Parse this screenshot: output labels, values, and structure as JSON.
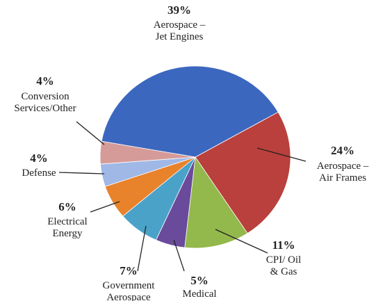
{
  "chart_data": {
    "type": "pie",
    "categories": [
      "Aerospace –\nJet Engines",
      "Aerospace –\nAir Frames",
      "CPI/ Oil\n& Gas",
      "Medical",
      "Government\nAerospace",
      "Electrical\nEnergy",
      "Defense",
      "Conversion\nServices/Other"
    ],
    "values": [
      39,
      24,
      11,
      5,
      7,
      6,
      4,
      4
    ],
    "value_labels": [
      "39%",
      "24%",
      "11%",
      "5%",
      "7%",
      "6%",
      "4%",
      "4%"
    ],
    "colors": [
      "#3c67bf",
      "#b9403c",
      "#93b84b",
      "#6a4b9b",
      "#4ba2c9",
      "#e8822b",
      "#9fb8e6",
      "#d59b99"
    ]
  }
}
